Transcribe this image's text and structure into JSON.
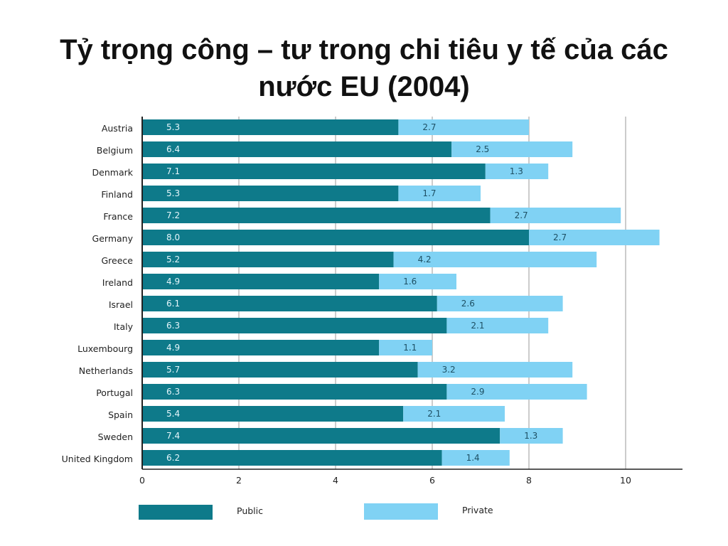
{
  "slide": {
    "title": "Tỷ trọng công – tư trong chi tiêu y tế của các nước EU  (2004)"
  },
  "chart_data": {
    "type": "bar",
    "orientation": "horizontal",
    "stacked": true,
    "categories": [
      "Austria",
      "Belgium",
      "Denmark",
      "Finland",
      "France",
      "Germany",
      "Greece",
      "Ireland",
      "Israel",
      "Italy",
      "Luxembourg",
      "Netherlands",
      "Portugal",
      "Spain",
      "Sweden",
      "United Kingdom"
    ],
    "series": [
      {
        "name": "Public",
        "color": "#0e7a8a",
        "values": [
          5.3,
          6.4,
          7.1,
          5.3,
          7.2,
          8.0,
          5.2,
          4.9,
          6.1,
          6.3,
          4.9,
          5.7,
          6.3,
          5.4,
          7.4,
          6.2
        ]
      },
      {
        "name": "Private",
        "color": "#80d2f4",
        "values": [
          2.7,
          2.5,
          1.3,
          1.7,
          2.7,
          2.7,
          4.2,
          1.6,
          2.6,
          2.1,
          1.1,
          3.2,
          2.9,
          2.1,
          1.3,
          1.4
        ]
      }
    ],
    "value_labels": {
      "Public": [
        "5.3",
        "6.4",
        "7.1",
        "5.3",
        "7.2",
        "8.0",
        "5.2",
        "4.9",
        "6.1",
        "6.3",
        "4.9",
        "5.7",
        "6.3",
        "5.4",
        "7.4",
        "6.2"
      ],
      "Private": [
        "2.7",
        "2.5",
        "1.3",
        "1.7",
        "2.7",
        "2.7",
        "4.2",
        "1.6",
        "2.6",
        "2.1",
        "1.1",
        "3.2",
        "2.9",
        "2.1",
        "1.3",
        "1.4"
      ]
    },
    "xlim": [
      0,
      11.2
    ],
    "xticks": [
      0,
      2,
      4,
      6,
      8,
      10
    ],
    "xtick_labels": [
      "0",
      "2",
      "4",
      "6",
      "8",
      "10"
    ],
    "grid": "vertical",
    "legend": {
      "placement": "bottom",
      "entries": [
        "Public",
        "Private"
      ]
    },
    "title": "",
    "xlabel": "",
    "ylabel": ""
  }
}
